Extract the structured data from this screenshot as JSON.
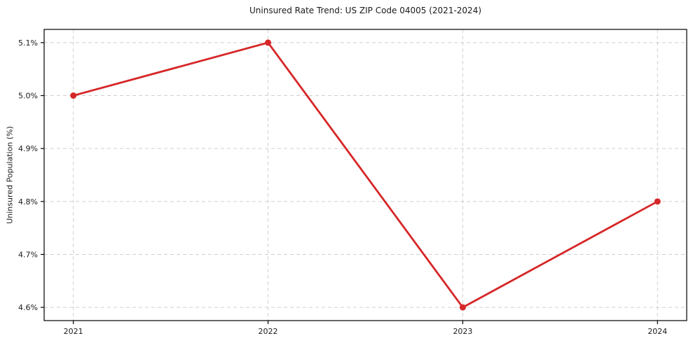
{
  "figure": {
    "title": "Uninsured Rate Trend: US ZIP Code 04005 (2021-2024)"
  },
  "colors": {
    "line": "#d62728",
    "marker": "#d62728",
    "grid": "#cfcfcf",
    "axis": "#000000",
    "text": "#1a1a1a",
    "background": "#ffffff"
  },
  "chart_data": {
    "type": "line",
    "title": "Uninsured Rate Trend: US ZIP Code 04005 (2021-2024)",
    "xlabel": "",
    "ylabel": "Uninsured Population (%)",
    "x": [
      2021,
      2022,
      2023,
      2024
    ],
    "series": [
      {
        "name": "Uninsured Population (%)",
        "values": [
          5.0,
          5.1,
          4.6,
          4.8
        ]
      }
    ],
    "xticks": [
      2021,
      2022,
      2023,
      2024
    ],
    "xtick_labels": [
      "2021",
      "2022",
      "2023",
      "2024"
    ],
    "yticks": [
      4.6,
      4.7,
      4.8,
      4.9,
      5.0,
      5.1
    ],
    "ytick_labels": [
      "4.6%",
      "4.7%",
      "4.8%",
      "4.9%",
      "5.0%",
      "5.1%"
    ],
    "xlim": [
      2020.85,
      2024.15
    ],
    "ylim": [
      4.575,
      5.125
    ],
    "grid": true,
    "grid_style": "dashed",
    "legend": "none",
    "marker": "circle"
  }
}
